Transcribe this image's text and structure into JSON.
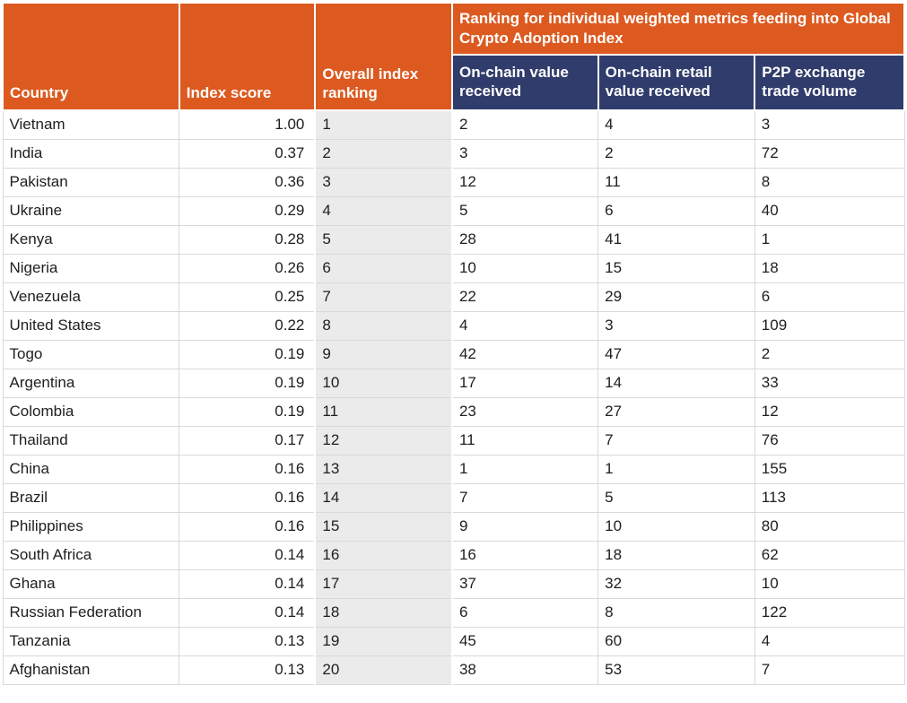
{
  "chart_data": {
    "type": "table",
    "group_header": "Ranking for individual weighted metrics feeding into Global Crypto Adoption Index",
    "columns": [
      "Country",
      "Index score",
      "Overall index ranking",
      "On-chain value received",
      "On-chain retail value received",
      "P2P exchange trade volume"
    ],
    "rows": [
      [
        "Vietnam",
        "1.00",
        "1",
        "2",
        "4",
        "3"
      ],
      [
        "India",
        "0.37",
        "2",
        "3",
        "2",
        "72"
      ],
      [
        "Pakistan",
        "0.36",
        "3",
        "12",
        "11",
        "8"
      ],
      [
        "Ukraine",
        "0.29",
        "4",
        "5",
        "6",
        "40"
      ],
      [
        "Kenya",
        "0.28",
        "5",
        "28",
        "41",
        "1"
      ],
      [
        "Nigeria",
        "0.26",
        "6",
        "10",
        "15",
        "18"
      ],
      [
        "Venezuela",
        "0.25",
        "7",
        "22",
        "29",
        "6"
      ],
      [
        "United States",
        "0.22",
        "8",
        "4",
        "3",
        "109"
      ],
      [
        "Togo",
        "0.19",
        "9",
        "42",
        "47",
        "2"
      ],
      [
        "Argentina",
        "0.19",
        "10",
        "17",
        "14",
        "33"
      ],
      [
        "Colombia",
        "0.19",
        "11",
        "23",
        "27",
        "12"
      ],
      [
        "Thailand",
        "0.17",
        "12",
        "11",
        "7",
        "76"
      ],
      [
        "China",
        "0.16",
        "13",
        "1",
        "1",
        "155"
      ],
      [
        "Brazil",
        "0.16",
        "14",
        "7",
        "5",
        "113"
      ],
      [
        "Philippines",
        "0.16",
        "15",
        "9",
        "10",
        "80"
      ],
      [
        "South Africa",
        "0.14",
        "16",
        "16",
        "18",
        "62"
      ],
      [
        "Ghana",
        "0.14",
        "17",
        "37",
        "32",
        "10"
      ],
      [
        "Russian Federation",
        "0.14",
        "18",
        "6",
        "8",
        "122"
      ],
      [
        "Tanzania",
        "0.13",
        "19",
        "45",
        "60",
        "4"
      ],
      [
        "Afghanistan",
        "0.13",
        "20",
        "38",
        "53",
        "7"
      ]
    ],
    "layout_hints": {
      "header_rows": 2,
      "group_header_spans_columns": [
        3,
        4,
        5
      ],
      "index_score_alignment": "right",
      "ranking_column_shaded": true
    }
  },
  "colors": {
    "header_orange": "#dc5a20",
    "subheader_navy": "#303c6b",
    "ranking_column_gray": "#ebebeb",
    "grid_border_gray": "#d9d9d9",
    "header_text": "#ffffff",
    "body_text": "#202020"
  }
}
